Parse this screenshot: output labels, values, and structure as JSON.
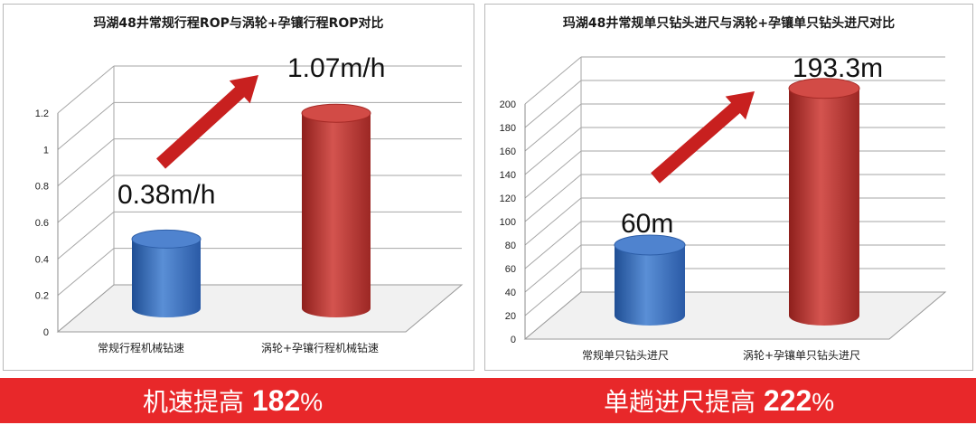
{
  "colors": {
    "blue_bar": "#3a6fbf",
    "red_bar": "#c13a36",
    "arrow": "#c8201f",
    "banner": "#e8282a"
  },
  "chart_data": [
    {
      "type": "bar",
      "title": "玛湖48井常规行程ROP与涡轮+孕镶行程ROP对比",
      "categories": [
        "常规行程机械钻速",
        "涡轮+孕镶行程机械钻速"
      ],
      "values": [
        0.38,
        1.07
      ],
      "data_labels": [
        "0.38m/h",
        "1.07m/h"
      ],
      "yticks": [
        "0",
        "0.2",
        "0.4",
        "0.6",
        "0.8",
        "1",
        "1.2"
      ],
      "ylim": [
        0,
        1.2
      ],
      "grid": true,
      "style": "3d-cylinder"
    },
    {
      "type": "bar",
      "title": "玛湖48井常规单只钻头进尺与涡轮+孕镶单只钻头进尺对比",
      "categories": [
        "常规单只钻头进尺",
        "涡轮+孕镶单只钻头进尺"
      ],
      "values": [
        60,
        193.3
      ],
      "data_labels": [
        "60m",
        "193.3m"
      ],
      "yticks": [
        "0",
        "20",
        "40",
        "60",
        "80",
        "100",
        "120",
        "140",
        "160",
        "180",
        "200"
      ],
      "ylim": [
        0,
        200
      ],
      "grid": true,
      "style": "3d-cylinder"
    }
  ],
  "banner": {
    "left_prefix": "机速提高 ",
    "left_number": "182",
    "left_percent": "%",
    "right_prefix": "单趟进尺提高 ",
    "right_number": "222",
    "right_percent": "%"
  }
}
